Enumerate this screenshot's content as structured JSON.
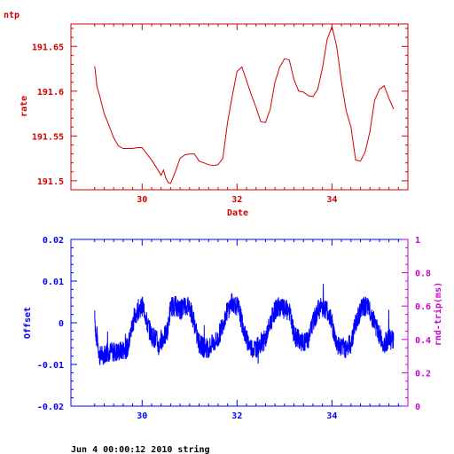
{
  "top_title": "ntp",
  "footer_text": "Jun  4 00:00:12 2010 string",
  "colors": {
    "top": "#d00000",
    "offset": "#0000ff",
    "rtt": "#cc00cc"
  },
  "chart_data": [
    {
      "type": "line",
      "title": "ntp",
      "xlabel": "Date",
      "ylabel": "rate",
      "xlim": [
        28.5,
        35.6
      ],
      "ylim": [
        191.49,
        191.675
      ],
      "x_ticks": [
        "30",
        "32",
        "34"
      ],
      "y_ticks": [
        "191.5",
        "191.55",
        "191.6",
        "191.65"
      ],
      "grid": false,
      "series": [
        {
          "x": [
            29.0,
            29.05,
            29.1,
            29.2,
            29.3,
            29.4,
            29.5,
            29.6,
            29.7,
            29.8,
            29.9,
            30.0,
            30.1,
            30.2,
            30.3,
            30.4,
            30.45,
            30.5,
            30.55,
            30.6,
            30.7,
            30.8,
            30.9,
            31.0,
            31.1,
            31.2,
            31.3,
            31.4,
            31.5,
            31.6,
            31.7,
            31.8,
            31.9,
            32.0,
            32.1,
            32.2,
            32.3,
            32.4,
            32.5,
            32.6,
            32.7,
            32.8,
            32.9,
            33.0,
            33.1,
            33.2,
            33.3,
            33.4,
            33.5,
            33.6,
            33.7,
            33.8,
            33.9,
            34.0,
            34.1,
            34.2,
            34.3,
            34.4,
            34.5,
            34.6,
            34.7,
            34.8,
            34.9,
            35.0,
            35.1,
            35.2,
            35.3
          ],
          "values": [
            191.628,
            191.605,
            191.596,
            191.575,
            191.562,
            191.548,
            191.539,
            191.536,
            191.536,
            191.536,
            191.537,
            191.537,
            191.53,
            191.523,
            191.515,
            191.506,
            191.512,
            191.503,
            191.498,
            191.497,
            191.51,
            191.525,
            191.529,
            191.53,
            191.53,
            191.522,
            191.52,
            191.518,
            191.517,
            191.518,
            191.525,
            191.565,
            191.595,
            191.622,
            191.627,
            191.612,
            191.596,
            191.582,
            191.566,
            191.565,
            191.58,
            191.61,
            191.627,
            191.636,
            191.635,
            191.613,
            191.6,
            191.599,
            191.595,
            191.594,
            191.602,
            191.626,
            191.658,
            191.672,
            191.65,
            191.61,
            191.578,
            191.56,
            191.523,
            191.522,
            191.532,
            191.555,
            191.59,
            191.602,
            191.606,
            191.592,
            191.58
          ]
        }
      ]
    },
    {
      "type": "line",
      "title": "",
      "xlabel": "",
      "ylabel": "Offset",
      "ylabel_right": "rnd-trip(ms)",
      "xlim": [
        28.5,
        35.6
      ],
      "ylim": [
        -0.02,
        0.02
      ],
      "ylim_right": [
        0,
        1
      ],
      "x_ticks": [
        "30",
        "32",
        "34"
      ],
      "y_ticks": [
        "-0.02",
        "-0.01",
        "0",
        "0.01",
        "0.02"
      ],
      "y_ticks_right": [
        "0",
        "0.2",
        "0.4",
        "0.6",
        "0.8",
        "1"
      ],
      "grid": false,
      "series": [
        {
          "x": [
            29.0,
            29.03,
            29.05,
            29.08,
            29.1,
            29.3,
            29.5,
            29.7,
            29.75,
            29.8,
            29.9,
            30.0,
            30.05,
            30.1,
            30.2,
            30.3,
            30.35,
            30.4,
            30.5,
            30.55,
            30.6,
            30.7,
            30.8,
            30.9,
            31.0,
            31.1,
            31.15,
            31.2,
            31.3,
            31.4,
            31.5,
            31.6,
            31.7,
            31.8,
            31.9,
            32.0,
            32.05,
            32.1,
            32.2,
            32.3,
            32.4,
            32.5,
            32.6,
            32.7,
            32.8,
            32.9,
            33.0,
            33.1,
            33.15,
            33.2,
            33.3,
            33.4,
            33.5,
            33.6,
            33.7,
            33.8,
            33.9,
            34.0,
            34.05,
            34.1,
            34.2,
            34.3,
            34.4,
            34.5,
            34.6,
            34.7,
            34.8,
            34.9,
            35.0,
            35.1,
            35.2,
            35.3
          ],
          "values": [
            0.003,
            -0.005,
            -0.003,
            -0.006,
            -0.008,
            -0.007,
            -0.007,
            -0.006,
            -0.003,
            0.0,
            0.003,
            0.004,
            0.003,
            0.0,
            -0.003,
            -0.004,
            -0.006,
            -0.004,
            -0.003,
            -0.001,
            0.004,
            0.004,
            0.003,
            0.004,
            0.004,
            0.0,
            -0.003,
            -0.005,
            -0.006,
            -0.006,
            -0.005,
            -0.004,
            0.0,
            0.003,
            0.005,
            0.004,
            0.003,
            0.0,
            -0.004,
            -0.006,
            -0.006,
            -0.005,
            -0.004,
            0.0,
            0.003,
            0.004,
            0.003,
            0.003,
            0.0,
            -0.003,
            -0.004,
            -0.005,
            -0.004,
            0.0,
            0.003,
            0.004,
            0.003,
            0.0,
            -0.003,
            -0.005,
            -0.006,
            -0.006,
            -0.005,
            0.0,
            0.003,
            0.004,
            0.003,
            0.0,
            -0.003,
            -0.005,
            -0.004,
            -0.004
          ],
          "noise": 0.0025
        }
      ]
    }
  ]
}
